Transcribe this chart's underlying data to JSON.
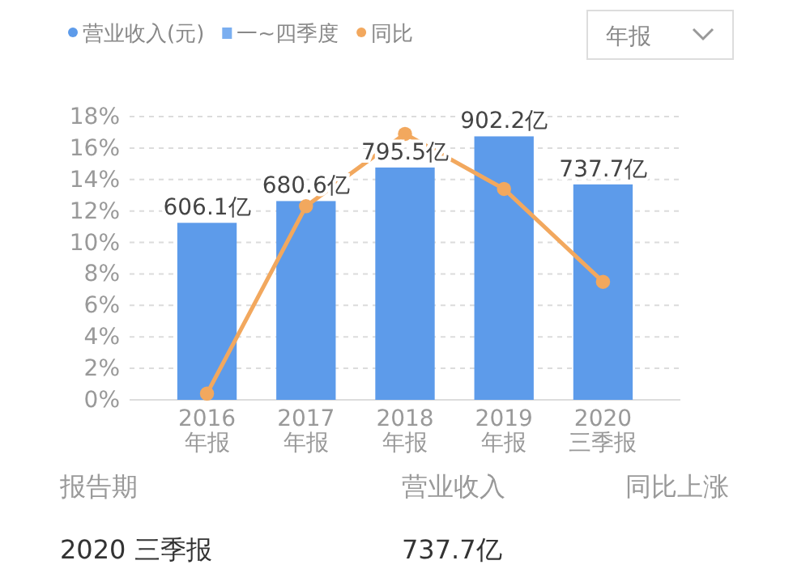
{
  "chart_data": {
    "type": "bar",
    "categories": [
      "2016\n年报",
      "2017\n年报",
      "2018\n年报",
      "2019\n年报",
      "2020\n三季报"
    ],
    "series": [
      {
        "name": "营业收入(元)",
        "color": "#5d9bea",
        "axis": "y2",
        "values": [
          606.1,
          680.6,
          795.5,
          902.2,
          737.7
        ],
        "value_labels": [
          "606.1亿",
          "680.6亿",
          "795.5亿",
          "902.2亿",
          "737.7亿"
        ]
      },
      {
        "name": "同比",
        "type": "line",
        "color": "#f2a85e",
        "values": [
          0.4,
          12.3,
          16.9,
          13.4,
          7.5
        ]
      }
    ],
    "ylim": [
      0,
      18
    ],
    "yticks": [
      {
        "value": 0,
        "label": "0%"
      },
      {
        "value": 2,
        "label": "2%"
      },
      {
        "value": 4,
        "label": "4%"
      },
      {
        "value": 6,
        "label": "6%"
      },
      {
        "value": 8,
        "label": "8%"
      },
      {
        "value": 10,
        "label": "10%"
      },
      {
        "value": 12,
        "label": "12%"
      },
      {
        "value": 14,
        "label": "14%"
      },
      {
        "value": 16,
        "label": "16%"
      },
      {
        "value": 18,
        "label": "18%"
      }
    ],
    "y2lim": [
      0,
      970
    ],
    "tick_labels": "y",
    "grid": "y",
    "legend": "top left",
    "marker": "circle",
    "line_style": "solid",
    "annotations": [
      "一~四季度",
      "年报",
      "报告期",
      "营业收入",
      "同比上涨",
      "2020 三季报",
      "737.7亿"
    ]
  }
}
